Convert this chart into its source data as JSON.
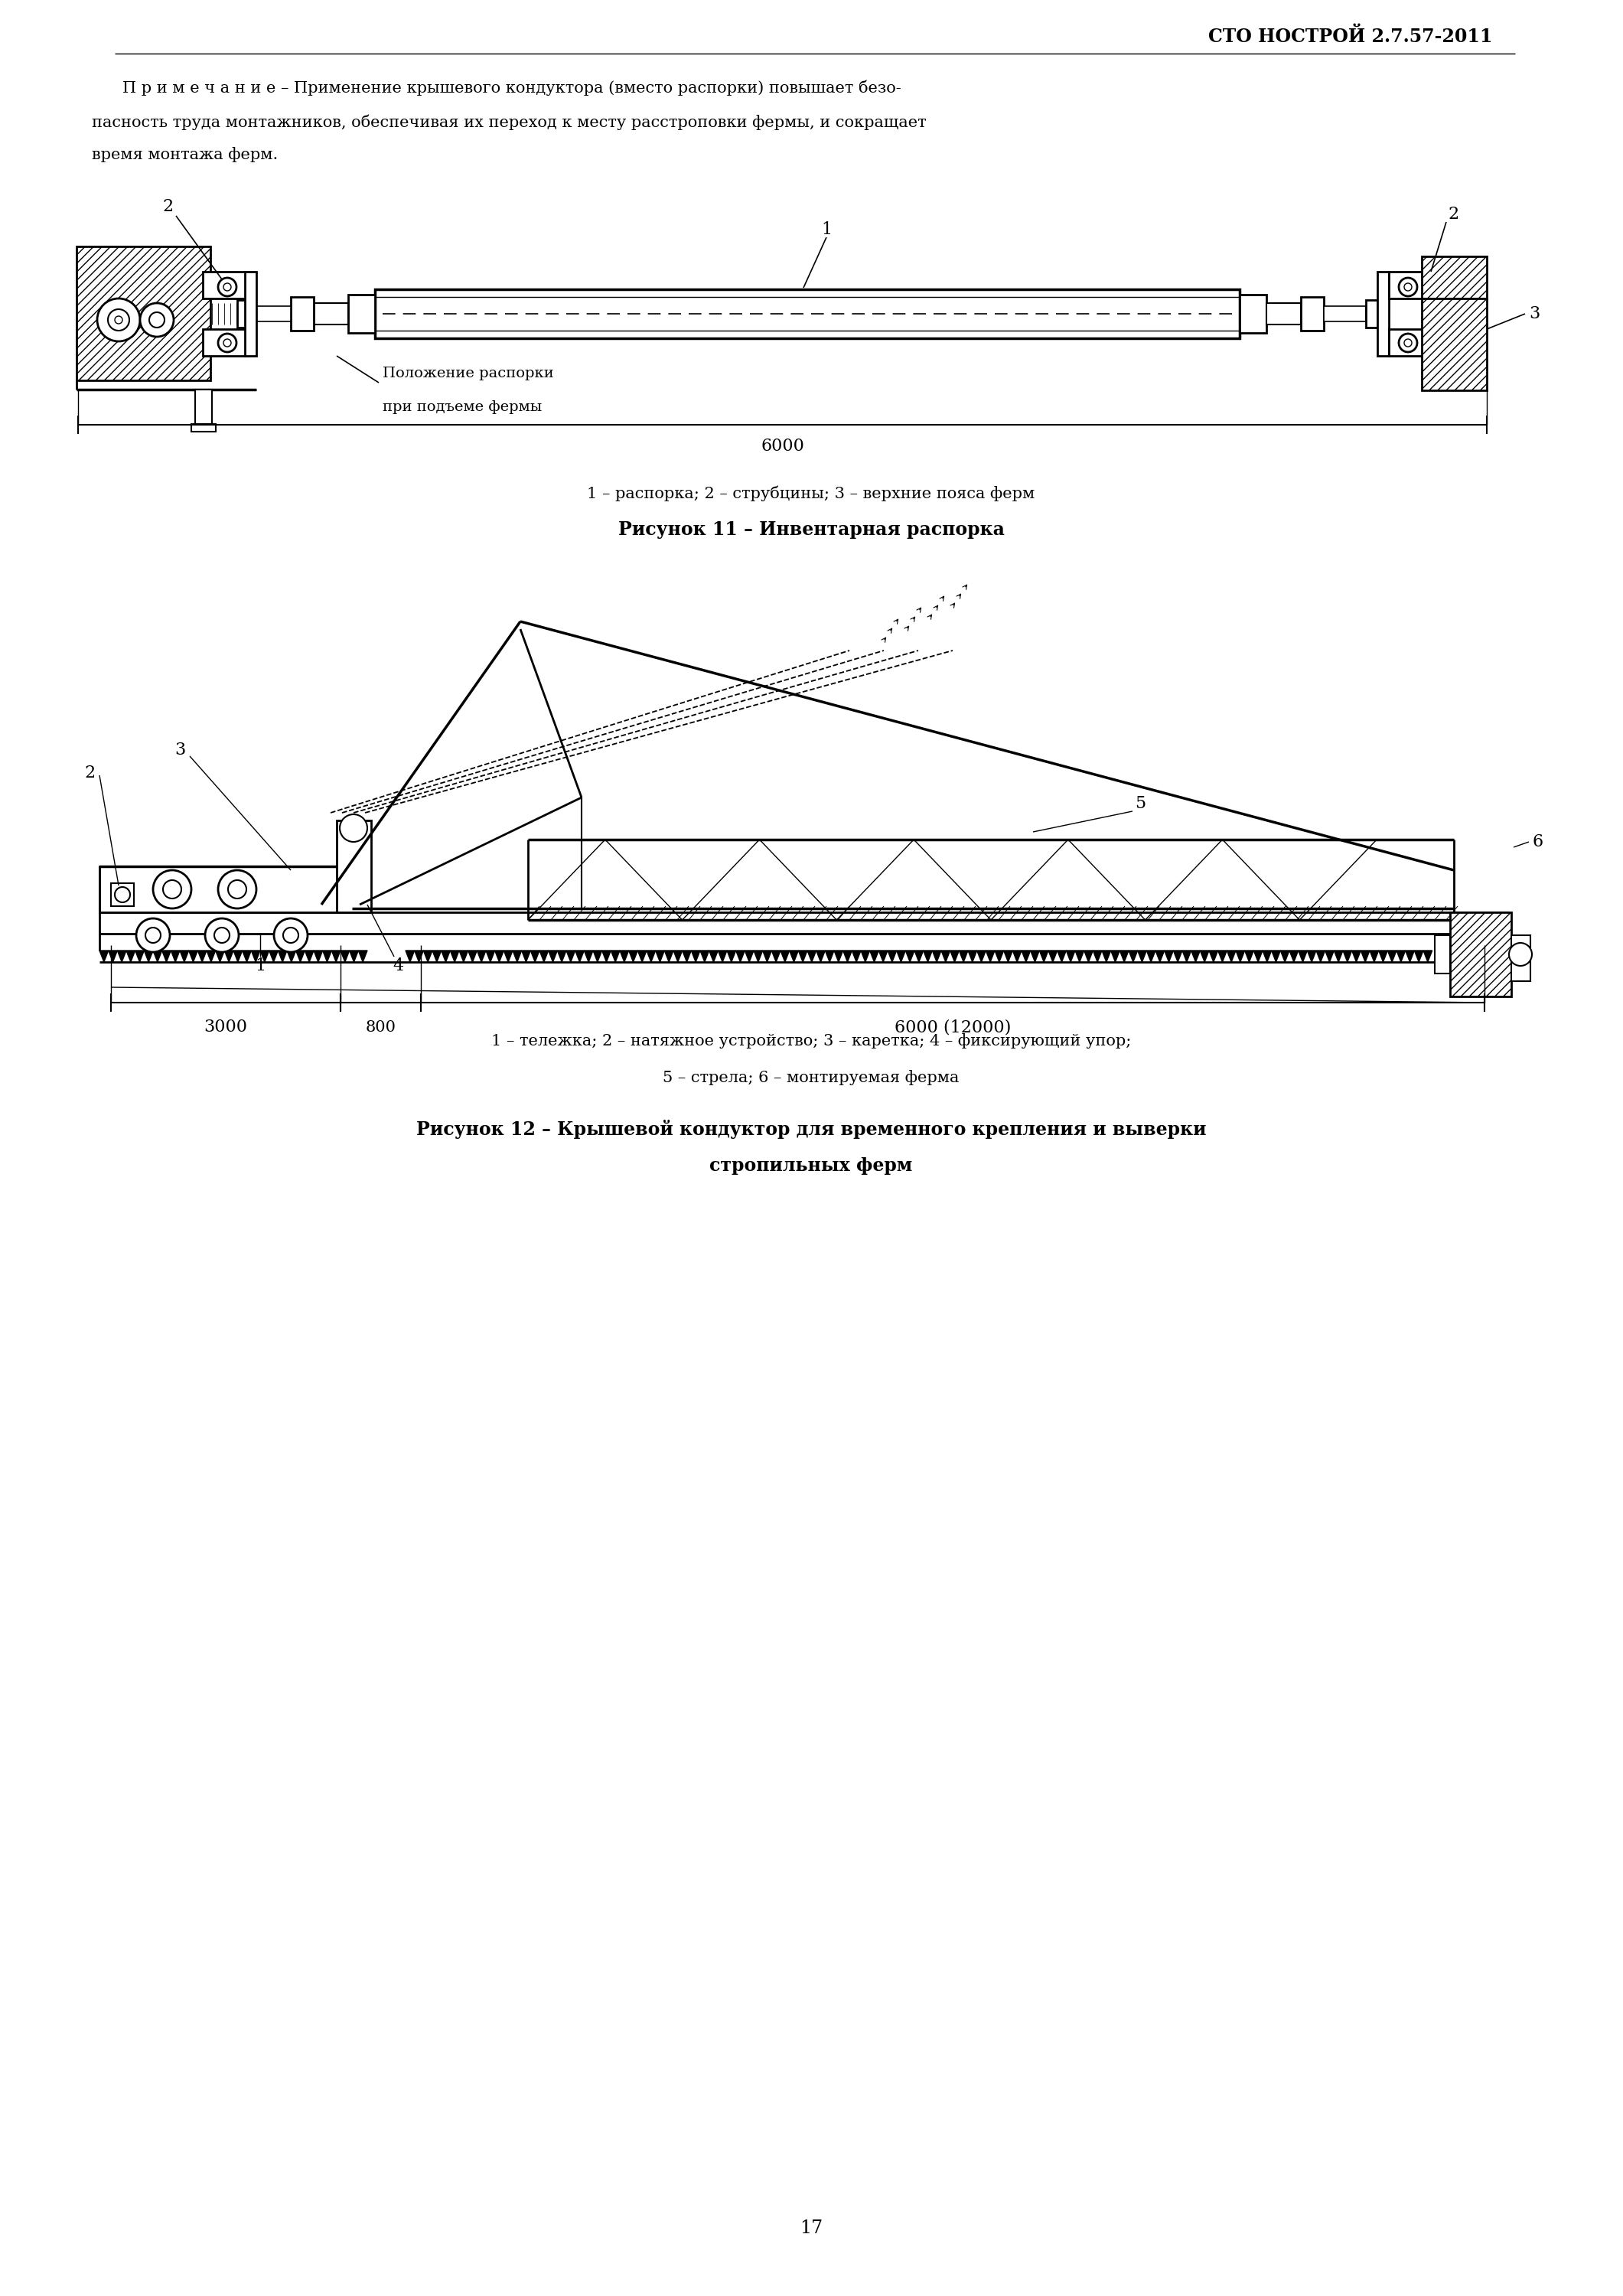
{
  "page_header": "СТО НОСТРОЙ 2.7.57-2011",
  "note_line1": "П р и м е ч а н и е – Применение крышевого кондуктора (вместо распорки) повышает безо-",
  "note_line2": "пасность труда монтажников, обеспечивая их переход к месту расстроповки фермы, и сокращает",
  "note_line3": "время монтажа ферм.",
  "fig11_ann1": "Положение распорки",
  "fig11_ann2": "при подъеме фермы",
  "fig11_dim": "6000",
  "fig11_cap_sub": "1 – распорка; 2 – струбцины; 3 – верхние пояса ферм",
  "fig11_cap": "Рисунок 11 – Инвентарная распорка",
  "fig12_dim1": "3000",
  "fig12_dim2": "800",
  "fig12_dim3": "6000 (12000)",
  "fig12_cap_sub1": "1 – тележка; 2 – натяжное устройство; 3 – каретка; 4 – фиксирующий упор;",
  "fig12_cap_sub2": "5 – стрела; 6 – монтируемая ферма",
  "fig12_cap1": "Рисунок 12 – Крышевой кондуктор для временного крепления и выверки",
  "fig12_cap2": "стропильных ферм",
  "page_number": "17",
  "bg_color": "#ffffff"
}
